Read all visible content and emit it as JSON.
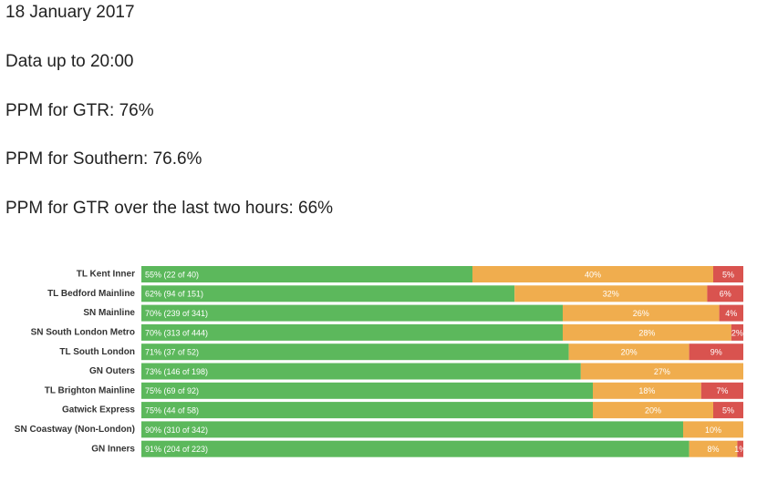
{
  "header": {
    "date": "18 January 2017",
    "data_up_to": "Data up to 20:00",
    "ppm_gtr": "PPM for GTR: 76%",
    "ppm_southern": "PPM for Southern: 76.6%",
    "ppm_gtr_two_hours": "PPM for GTR over the last two hours: 66%"
  },
  "chart_data": {
    "type": "bar",
    "orientation": "horizontal",
    "stacked": true,
    "categories": [
      "TL Kent Inner",
      "TL Bedford Mainline",
      "SN Mainline",
      "SN South London Metro",
      "TL South London",
      "GN Outers",
      "TL Brighton Mainline",
      "Gatwick Express",
      "SN Coastway (Non-London)",
      "GN Inners"
    ],
    "xlim": [
      0,
      100
    ],
    "series": [
      {
        "color": "#5cb85c",
        "values": [
          55,
          62,
          70,
          70,
          71,
          73,
          75,
          75,
          90,
          91
        ],
        "value_labels": [
          "55% (22 of 40)",
          "62% (94 of 151)",
          "70% (239 of 341)",
          "70% (313 of 444)",
          "71% (37 of 52)",
          "73% (146 of 198)",
          "75% (69 of 92)",
          "75% (44 of 58)",
          "90% (310 of 342)",
          "91% (204 of 223)"
        ]
      },
      {
        "color": "#f0ad4e",
        "values": [
          40,
          32,
          26,
          28,
          20,
          27,
          18,
          20,
          10,
          8
        ],
        "value_labels": [
          "40%",
          "32%",
          "26%",
          "28%",
          "20%",
          "27%",
          "18%",
          "20%",
          "10%",
          "8%"
        ]
      },
      {
        "color": "#d9534f",
        "values": [
          5,
          6,
          4,
          2,
          9,
          null,
          7,
          5,
          null,
          1
        ],
        "value_labels": [
          "5%",
          "6%",
          "4%",
          "2%",
          "9%",
          null,
          "7%",
          "5%",
          null,
          "1%"
        ]
      }
    ]
  }
}
